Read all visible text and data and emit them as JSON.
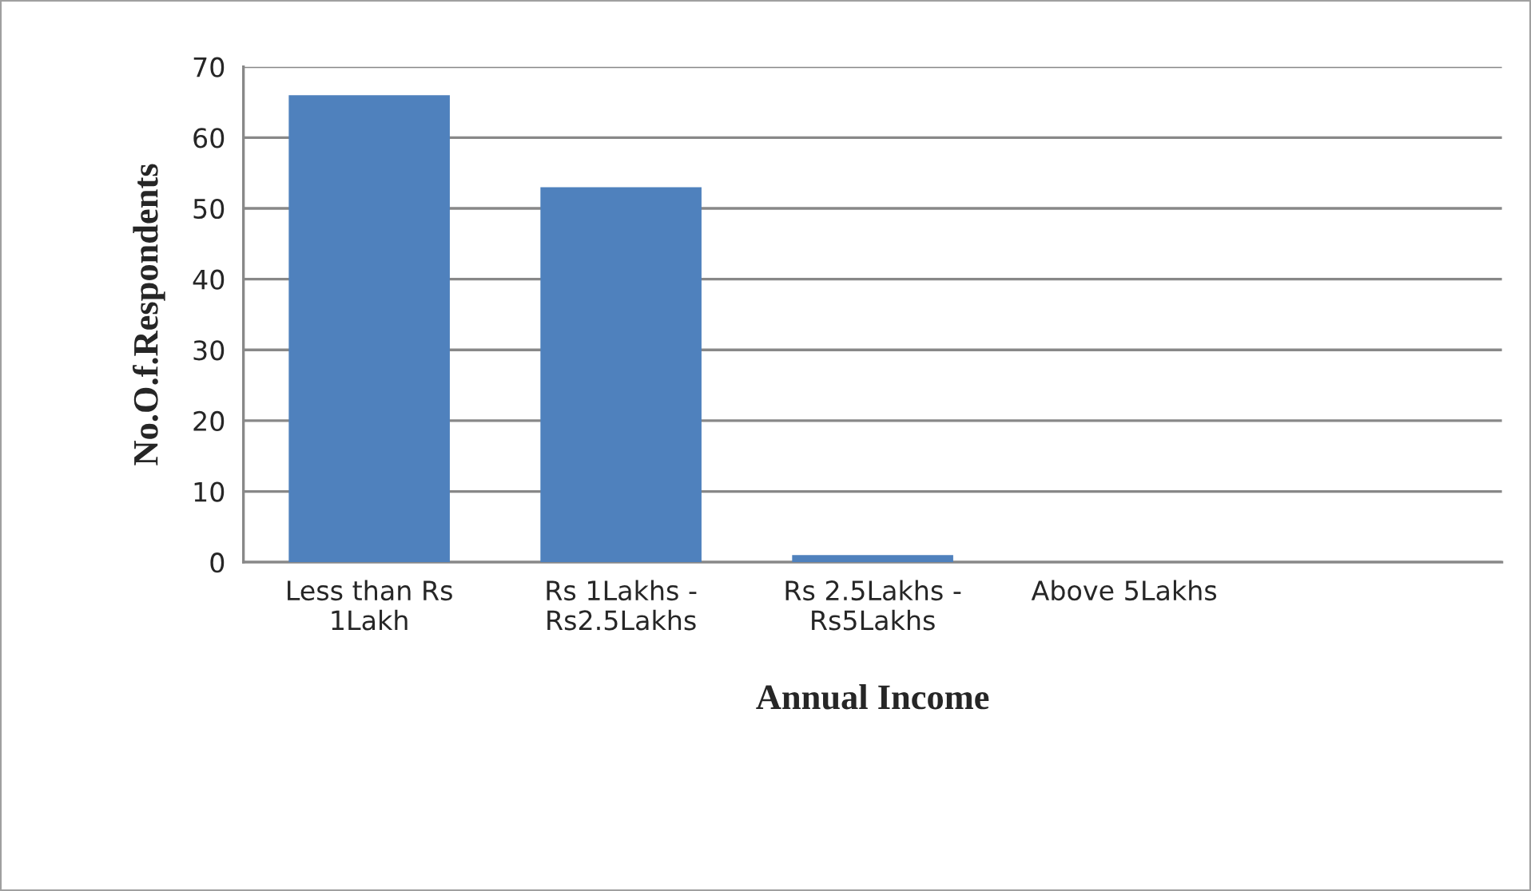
{
  "chart_data": {
    "type": "bar",
    "categories": [
      "Less than Rs\n1Lakh",
      "Rs 1Lakhs -\nRs2.5Lakhs",
      "Rs 2.5Lakhs -\nRs5Lakhs",
      "Above 5Lakhs",
      null
    ],
    "values": [
      66,
      53,
      1,
      0,
      null
    ],
    "color": "#4f81bd",
    "xlabel": "Annual Income",
    "ylabel": "No.O.f.Respondents",
    "ylim": [
      0,
      70
    ],
    "yticks": [
      0,
      10,
      20,
      30,
      40,
      50,
      60,
      70
    ],
    "grid": "y"
  }
}
